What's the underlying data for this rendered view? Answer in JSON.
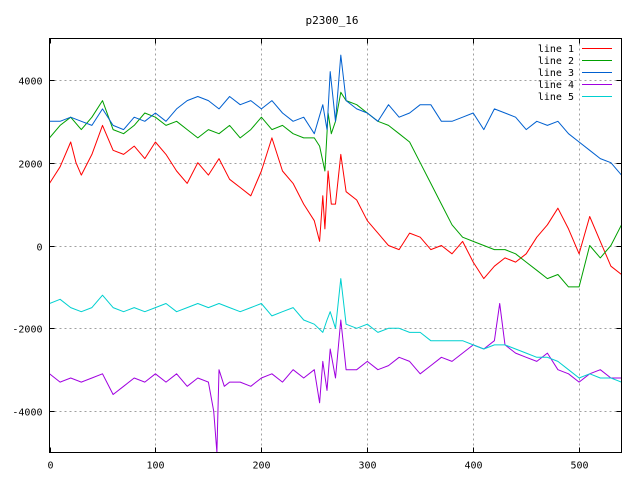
{
  "chart_data": {
    "type": "line",
    "title": "p2300_16",
    "xlabel": "",
    "ylabel": "",
    "xlim": [
      0,
      540
    ],
    "ylim": [
      -5000,
      5000
    ],
    "x_ticks": [
      0,
      100,
      200,
      300,
      400,
      500
    ],
    "y_ticks": [
      -4000,
      -2000,
      0,
      2000,
      4000
    ],
    "grid": true,
    "legend_position": "top-right",
    "series": [
      {
        "name": "line 1",
        "color": "#ff0000",
        "x": [
          0,
          10,
          20,
          25,
          30,
          40,
          50,
          60,
          70,
          80,
          90,
          100,
          110,
          120,
          130,
          140,
          150,
          160,
          170,
          180,
          190,
          200,
          210,
          220,
          230,
          240,
          250,
          255,
          258,
          260,
          263,
          266,
          270,
          275,
          280,
          290,
          300,
          310,
          320,
          330,
          340,
          350,
          360,
          370,
          380,
          390,
          400,
          410,
          420,
          430,
          440,
          450,
          460,
          470,
          480,
          490,
          500,
          510,
          520,
          530,
          540
        ],
        "values": [
          1500,
          1900,
          2500,
          2000,
          1700,
          2200,
          2900,
          2300,
          2200,
          2400,
          2100,
          2500,
          2200,
          1800,
          1500,
          2000,
          1700,
          2100,
          1600,
          1400,
          1200,
          1800,
          2600,
          1800,
          1500,
          1000,
          600,
          100,
          1200,
          400,
          1800,
          1000,
          1000,
          2200,
          1300,
          1100,
          600,
          300,
          0,
          -100,
          300,
          200,
          -100,
          0,
          -200,
          100,
          -400,
          -800,
          -500,
          -300,
          -400,
          -200,
          200,
          500,
          900,
          400,
          -200,
          700,
          100,
          -500,
          -700
        ]
      },
      {
        "name": "line 2",
        "color": "#00a000",
        "x": [
          0,
          10,
          20,
          30,
          40,
          50,
          60,
          70,
          80,
          90,
          100,
          110,
          120,
          130,
          140,
          150,
          160,
          170,
          180,
          190,
          200,
          210,
          220,
          230,
          240,
          250,
          255,
          260,
          263,
          266,
          270,
          275,
          280,
          290,
          300,
          310,
          320,
          330,
          340,
          350,
          360,
          370,
          380,
          390,
          400,
          410,
          420,
          430,
          440,
          450,
          460,
          470,
          480,
          490,
          500,
          510,
          520,
          530,
          540
        ],
        "values": [
          2600,
          2900,
          3100,
          2800,
          3100,
          3500,
          2800,
          2700,
          2900,
          3200,
          3100,
          2900,
          3000,
          2800,
          2600,
          2800,
          2700,
          2900,
          2600,
          2800,
          3100,
          2800,
          2900,
          2700,
          2600,
          2600,
          2400,
          1800,
          3200,
          2700,
          3000,
          3700,
          3500,
          3400,
          3200,
          3000,
          2900,
          2700,
          2500,
          2000,
          1500,
          1000,
          500,
          200,
          100,
          0,
          -100,
          -100,
          -200,
          -400,
          -600,
          -800,
          -700,
          -1000,
          -1000,
          0,
          -300,
          0,
          500
        ]
      },
      {
        "name": "line 3",
        "color": "#0060d0",
        "x": [
          0,
          10,
          20,
          30,
          40,
          50,
          60,
          70,
          80,
          90,
          100,
          110,
          120,
          130,
          140,
          150,
          160,
          170,
          180,
          190,
          200,
          210,
          220,
          230,
          240,
          250,
          258,
          262,
          265,
          270,
          275,
          280,
          290,
          300,
          310,
          320,
          330,
          340,
          350,
          360,
          370,
          380,
          390,
          400,
          410,
          420,
          430,
          440,
          450,
          460,
          470,
          480,
          490,
          500,
          510,
          520,
          530,
          540
        ],
        "values": [
          3000,
          3000,
          3100,
          3000,
          2900,
          3300,
          2900,
          2800,
          3100,
          3000,
          3200,
          3000,
          3300,
          3500,
          3600,
          3500,
          3300,
          3600,
          3400,
          3500,
          3300,
          3500,
          3200,
          3000,
          3100,
          2700,
          3400,
          2800,
          4200,
          3000,
          4600,
          3500,
          3300,
          3200,
          3000,
          3400,
          3100,
          3200,
          3400,
          3400,
          3000,
          3000,
          3100,
          3200,
          2800,
          3300,
          3200,
          3100,
          2800,
          3000,
          2900,
          3000,
          2700,
          2500,
          2300,
          2100,
          2000,
          1700
        ]
      },
      {
        "name": "line 4",
        "color": "#a000e0",
        "x": [
          0,
          10,
          20,
          30,
          40,
          50,
          60,
          70,
          80,
          90,
          100,
          110,
          120,
          130,
          140,
          150,
          155,
          158,
          160,
          165,
          170,
          180,
          190,
          200,
          210,
          220,
          230,
          240,
          250,
          255,
          258,
          262,
          265,
          270,
          275,
          280,
          290,
          300,
          310,
          320,
          330,
          340,
          350,
          360,
          370,
          380,
          390,
          400,
          410,
          420,
          425,
          430,
          440,
          450,
          460,
          470,
          480,
          490,
          500,
          510,
          520,
          530,
          540
        ],
        "values": [
          -3100,
          -3300,
          -3200,
          -3300,
          -3200,
          -3100,
          -3600,
          -3400,
          -3200,
          -3300,
          -3100,
          -3300,
          -3100,
          -3400,
          -3200,
          -3300,
          -4000,
          -5000,
          -3000,
          -3400,
          -3300,
          -3300,
          -3400,
          -3200,
          -3100,
          -3300,
          -3000,
          -3200,
          -3000,
          -3800,
          -2800,
          -3500,
          -2500,
          -3200,
          -1800,
          -3000,
          -3000,
          -2800,
          -3000,
          -2900,
          -2700,
          -2800,
          -3100,
          -2900,
          -2700,
          -2800,
          -2600,
          -2400,
          -2500,
          -2300,
          -1400,
          -2400,
          -2600,
          -2700,
          -2800,
          -2600,
          -3000,
          -3100,
          -3300,
          -3100,
          -3000,
          -3200,
          -3200
        ]
      },
      {
        "name": "line 5",
        "color": "#00d0d0",
        "x": [
          0,
          10,
          20,
          30,
          40,
          50,
          60,
          70,
          80,
          90,
          100,
          110,
          120,
          130,
          140,
          150,
          160,
          170,
          180,
          190,
          200,
          210,
          220,
          230,
          240,
          250,
          258,
          262,
          265,
          270,
          275,
          280,
          290,
          300,
          310,
          320,
          330,
          340,
          350,
          360,
          370,
          380,
          390,
          400,
          410,
          420,
          430,
          440,
          450,
          460,
          470,
          480,
          490,
          500,
          510,
          520,
          530,
          540
        ],
        "values": [
          -1400,
          -1300,
          -1500,
          -1600,
          -1500,
          -1200,
          -1500,
          -1600,
          -1500,
          -1600,
          -1500,
          -1400,
          -1600,
          -1500,
          -1400,
          -1500,
          -1400,
          -1500,
          -1600,
          -1500,
          -1400,
          -1700,
          -1600,
          -1500,
          -1800,
          -1900,
          -2100,
          -1800,
          -1600,
          -2000,
          -800,
          -1900,
          -2000,
          -1900,
          -2100,
          -2000,
          -2000,
          -2100,
          -2100,
          -2300,
          -2300,
          -2300,
          -2300,
          -2400,
          -2500,
          -2400,
          -2400,
          -2500,
          -2600,
          -2700,
          -2700,
          -2800,
          -3000,
          -3200,
          -3100,
          -3200,
          -3200,
          -3300
        ]
      }
    ]
  }
}
